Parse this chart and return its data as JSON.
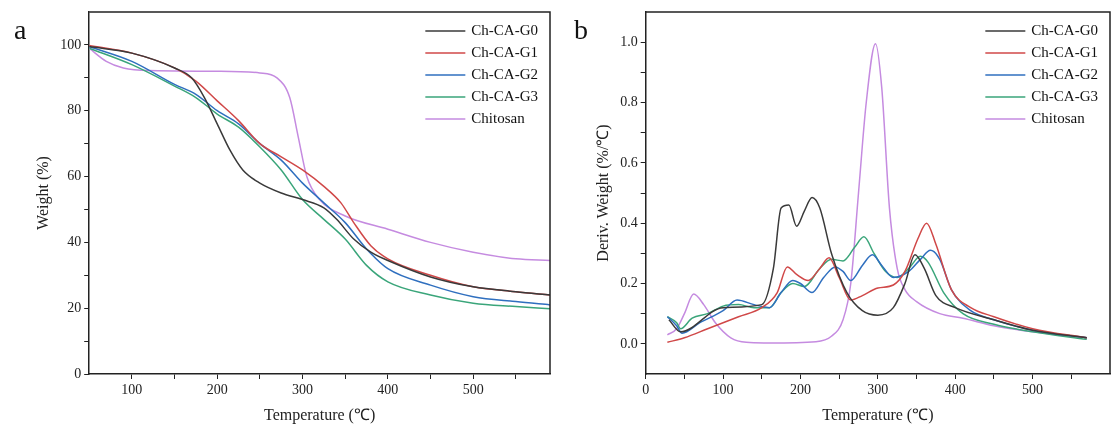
{
  "chart_data": [
    {
      "type": "line",
      "annotations": [
        "a"
      ],
      "xlabel": "Temperature (℃)",
      "ylabel": "Weight (%)",
      "xlim": [
        50,
        590
      ],
      "ylim": [
        0,
        110
      ],
      "xticks": [
        100,
        {
          "value": 150,
          "label": null
        },
        200,
        {
          "value": 250,
          "label": null
        },
        300,
        {
          "value": 350,
          "label": null
        },
        400,
        {
          "value": 450,
          "label": null
        },
        500,
        {
          "value": 550,
          "label": null
        }
      ],
      "yticks": [
        0,
        {
          "value": 10,
          "label": null
        },
        20,
        {
          "value": 30,
          "label": null
        },
        40,
        {
          "value": 50,
          "label": null
        },
        60,
        {
          "value": 70,
          "label": null
        },
        80,
        {
          "value": 90,
          "label": null
        },
        100
      ],
      "grid": false,
      "legend": "top right",
      "marker": "none",
      "line_style": "solid",
      "series": [
        {
          "name": "Ch-CA-G0",
          "color": "#3a3a3a",
          "x": [
            50,
            100,
            150,
            170,
            185,
            200,
            215,
            230,
            250,
            275,
            300,
            325,
            340,
            360,
            380,
            400,
            450,
            500,
            550,
            590
          ],
          "values": [
            99.5,
            97.5,
            93,
            90,
            84,
            76,
            68,
            62,
            58,
            55,
            53,
            50.5,
            47,
            41,
            37,
            34.5,
            29.5,
            26.5,
            25,
            24
          ]
        },
        {
          "name": "Ch-CA-G1",
          "color": "#d04848",
          "x": [
            50,
            100,
            150,
            175,
            200,
            225,
            250,
            275,
            300,
            325,
            345,
            360,
            380,
            400,
            450,
            500,
            550,
            590
          ],
          "values": [
            99.8,
            97.5,
            93,
            89,
            83,
            77,
            70,
            66,
            62,
            57,
            52,
            46,
            39,
            35,
            30,
            26.5,
            25,
            24
          ]
        },
        {
          "name": "Ch-CA-G2",
          "color": "#2f6fbf",
          "x": [
            50,
            100,
            150,
            175,
            200,
            225,
            250,
            275,
            300,
            325,
            350,
            375,
            400,
            450,
            500,
            550,
            590
          ],
          "values": [
            99.5,
            95,
            88,
            85,
            80,
            76,
            70,
            65,
            58,
            52,
            46,
            38,
            32,
            27,
            23.5,
            22,
            21
          ]
        },
        {
          "name": "Ch-CA-G3",
          "color": "#3aa57a",
          "x": [
            50,
            100,
            150,
            175,
            200,
            225,
            250,
            275,
            300,
            325,
            350,
            375,
            400,
            450,
            500,
            550,
            590
          ],
          "values": [
            99,
            94,
            87.5,
            84,
            79,
            75,
            69,
            62,
            53,
            47,
            41,
            33,
            28,
            24,
            21.5,
            20.5,
            19.8
          ]
        },
        {
          "name": "Chitosan",
          "color": "#c58be0",
          "x": [
            50,
            70,
            90,
            120,
            200,
            250,
            270,
            285,
            295,
            305,
            320,
            350,
            400,
            450,
            500,
            550,
            590
          ],
          "values": [
            99,
            95,
            93,
            92.2,
            92,
            91.5,
            90,
            84,
            72,
            60,
            53,
            48,
            44,
            40,
            37,
            35,
            34.5
          ]
        }
      ]
    },
    {
      "type": "line",
      "annotations": [
        "b"
      ],
      "xlabel": "Temperature (℃)",
      "ylabel": "Deriv. Weight (%/℃)",
      "xlim": [
        0,
        600
      ],
      "ylim": [
        -0.1,
        1.1
      ],
      "xticks": [
        0,
        {
          "value": 50,
          "label": null
        },
        100,
        {
          "value": 150,
          "label": null
        },
        200,
        {
          "value": 250,
          "label": null
        },
        300,
        {
          "value": 350,
          "label": null
        },
        400,
        {
          "value": 450,
          "label": null
        },
        500,
        {
          "value": 550,
          "label": null
        }
      ],
      "yticks": [
        {
          "value": 0,
          "label": "0.0"
        },
        {
          "value": 0.1,
          "label": null
        },
        0.2,
        {
          "value": 0.3,
          "label": null
        },
        0.4,
        {
          "value": 0.5,
          "label": null
        },
        0.6,
        {
          "value": 0.7,
          "label": null
        },
        0.8,
        {
          "value": 0.9,
          "label": null
        },
        {
          "value": 1,
          "label": "1.0"
        }
      ],
      "grid": false,
      "legend": "top right",
      "marker": "none",
      "line_style": "solid",
      "series": [
        {
          "name": "Ch-CA-G0",
          "color": "#3a3a3a",
          "x": [
            30,
            45,
            100,
            150,
            165,
            175,
            185,
            195,
            205,
            215,
            225,
            240,
            260,
            280,
            300,
            320,
            335,
            348,
            360,
            375,
            400,
            450,
            500,
            570
          ],
          "values": [
            0.08,
            0.04,
            0.12,
            0.13,
            0.25,
            0.45,
            0.46,
            0.39,
            0.44,
            0.485,
            0.45,
            0.3,
            0.17,
            0.11,
            0.095,
            0.12,
            0.2,
            0.295,
            0.25,
            0.16,
            0.12,
            0.08,
            0.045,
            0.02
          ]
        },
        {
          "name": "Ch-CA-G1",
          "color": "#d04848",
          "x": [
            28,
            50,
            80,
            120,
            150,
            170,
            183,
            195,
            210,
            225,
            237,
            250,
            265,
            280,
            300,
            320,
            335,
            352,
            363,
            375,
            395,
            420,
            450,
            500,
            570
          ],
          "values": [
            0.005,
            0.02,
            0.05,
            0.09,
            0.12,
            0.17,
            0.255,
            0.23,
            0.21,
            0.25,
            0.285,
            0.22,
            0.145,
            0.16,
            0.185,
            0.195,
            0.24,
            0.35,
            0.4,
            0.33,
            0.18,
            0.12,
            0.09,
            0.05,
            0.02
          ]
        },
        {
          "name": "Ch-CA-G2",
          "color": "#2f6fbf",
          "x": [
            28,
            40,
            47,
            70,
            100,
            118,
            140,
            160,
            175,
            190,
            200,
            215,
            230,
            245,
            255,
            265,
            280,
            293,
            305,
            320,
            340,
            355,
            368,
            380,
            395,
            420,
            450,
            500,
            570
          ],
          "values": [
            0.09,
            0.06,
            0.035,
            0.07,
            0.11,
            0.145,
            0.13,
            0.12,
            0.17,
            0.21,
            0.2,
            0.17,
            0.22,
            0.255,
            0.24,
            0.21,
            0.26,
            0.295,
            0.26,
            0.22,
            0.24,
            0.28,
            0.31,
            0.28,
            0.18,
            0.11,
            0.08,
            0.045,
            0.02
          ]
        },
        {
          "name": "Ch-CA-G3",
          "color": "#3aa57a",
          "x": [
            28,
            40,
            45,
            60,
            80,
            100,
            120,
            140,
            160,
            175,
            190,
            205,
            225,
            240,
            255,
            270,
            282,
            295,
            310,
            325,
            340,
            355,
            365,
            385,
            410,
            450,
            500,
            570
          ],
          "values": [
            0.09,
            0.07,
            0.05,
            0.085,
            0.1,
            0.125,
            0.13,
            0.12,
            0.12,
            0.17,
            0.2,
            0.19,
            0.25,
            0.28,
            0.275,
            0.32,
            0.355,
            0.3,
            0.24,
            0.22,
            0.25,
            0.29,
            0.27,
            0.17,
            0.1,
            0.065,
            0.04,
            0.015
          ]
        },
        {
          "name": "Chitosan",
          "color": "#c58be0",
          "x": [
            28,
            40,
            50,
            62,
            75,
            90,
            110,
            130,
            160,
            220,
            240,
            255,
            265,
            275,
            285,
            297,
            305,
            315,
            325,
            335,
            350,
            380,
            410,
            450,
            500,
            570
          ],
          "values": [
            0.03,
            0.05,
            0.1,
            0.165,
            0.13,
            0.07,
            0.02,
            0.005,
            0.003,
            0.007,
            0.025,
            0.08,
            0.2,
            0.5,
            0.8,
            0.995,
            0.85,
            0.45,
            0.25,
            0.18,
            0.14,
            0.1,
            0.085,
            0.06,
            0.04,
            0.02
          ]
        }
      ]
    }
  ]
}
